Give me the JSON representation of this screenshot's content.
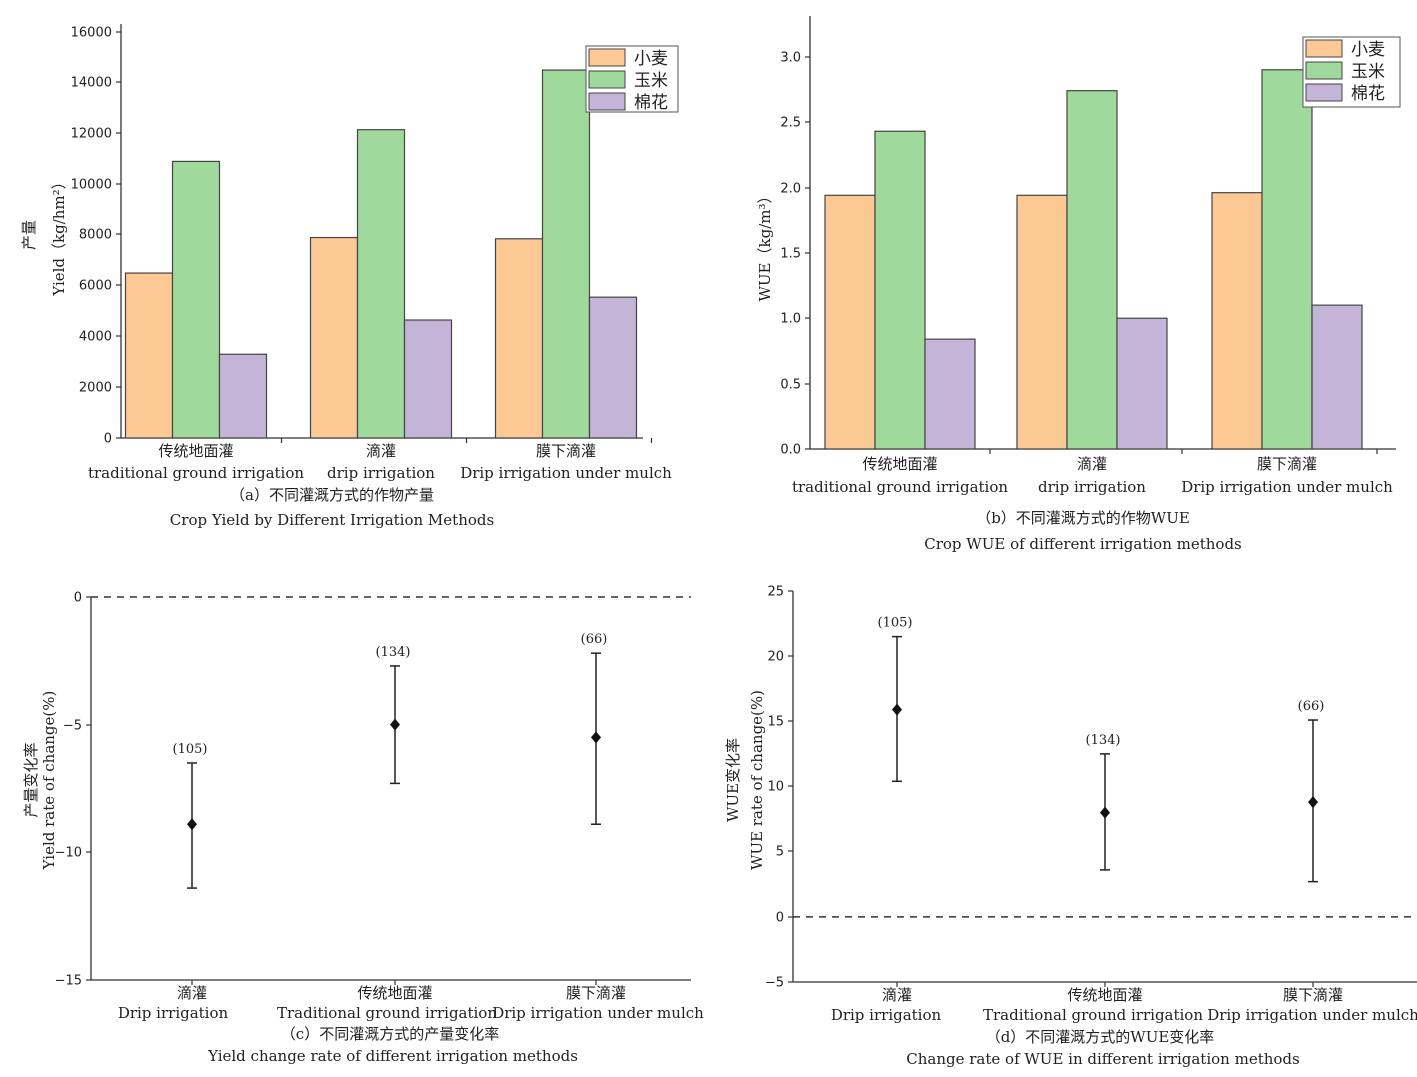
{
  "chart_data": [
    {
      "type": "bar",
      "categories": [
        {
          "zh": "传统地面灌",
          "en": "traditional ground irrigation"
        },
        {
          "zh": "滴灌",
          "en": "drip irrigation"
        },
        {
          "zh": "膜下滴灌",
          "en": "Drip irrigation under mulch"
        }
      ],
      "series": [
        {
          "name": "小麦",
          "color": "#fcc995",
          "values": [
            6500,
            7900,
            7850
          ]
        },
        {
          "name": "玉米",
          "color": "#9fd99c",
          "values": [
            10900,
            12150,
            14500
          ]
        },
        {
          "name": "棉花",
          "color": "#c3b4d8",
          "values": [
            3300,
            4650,
            5550
          ]
        }
      ],
      "ylim": [
        0,
        16000
      ],
      "yticks": [
        "0",
        "2000",
        "4000",
        "6000",
        "8000",
        "10000",
        "12000",
        "14000",
        "16000"
      ],
      "ylabel_zh": "产量",
      "ylabel_en": "Yield（kg/hm²）",
      "caption_zh": "（a）不同灌溉方式的作物产量",
      "caption_en": "Crop Yield by Different Irrigation Methods",
      "legend": "top-right"
    },
    {
      "type": "bar",
      "categories": [
        {
          "zh": "传统地面灌",
          "en": "traditional ground irrigation"
        },
        {
          "zh": "滴灌",
          "en": "drip irrigation"
        },
        {
          "zh": "膜下滴灌",
          "en": "Drip irrigation under mulch"
        }
      ],
      "series": [
        {
          "name": "小麦",
          "color": "#fcc995",
          "values": [
            1.94,
            1.94,
            1.96
          ]
        },
        {
          "name": "玉米",
          "color": "#9fd99c",
          "values": [
            2.43,
            2.74,
            2.9
          ]
        },
        {
          "name": "棉花",
          "color": "#c3b4d8",
          "values": [
            0.84,
            1.0,
            1.1
          ]
        }
      ],
      "ylim": [
        0,
        3.25
      ],
      "yticks": [
        "0.0",
        "0.5",
        "1.0",
        "1.5",
        "2.0",
        "2.5",
        "3.0"
      ],
      "ylabel_en": "WUE（kg/m³）",
      "caption_zh": "（b）不同灌溉方式的作物WUE",
      "caption_en": "Crop WUE of different irrigation methods",
      "legend": "top-right"
    },
    {
      "type": "scatter",
      "categories": [
        {
          "zh": "滴灌",
          "en": "Drip irrigation"
        },
        {
          "zh": "传统地面灌",
          "en": "Traditional ground irrigation"
        },
        {
          "zh": "膜下滴灌",
          "en": "Drip irrigation under mulch"
        }
      ],
      "points": [
        {
          "mean": -8.9,
          "low": -11.4,
          "high": -6.5,
          "n": "(105)"
        },
        {
          "mean": -5.0,
          "low": -7.3,
          "high": -2.7,
          "n": "(134)"
        },
        {
          "mean": -5.5,
          "low": -8.9,
          "high": -2.2,
          "n": "(66)"
        }
      ],
      "ylim": [
        -15,
        0
      ],
      "yticks": [
        "−15",
        "−10",
        "−5",
        "0"
      ],
      "reference_line": 0,
      "ylabel_zh": "产量变化率",
      "ylabel_en": "Yield rate of change(%)",
      "caption_zh": "（c）不同灌溉方式的产量变化率",
      "caption_en": "Yield change rate of different irrigation methods"
    },
    {
      "type": "scatter",
      "categories": [
        {
          "zh": "滴灌",
          "en": "Drip irrigation"
        },
        {
          "zh": "传统地面灌",
          "en": "Traditional ground irrigation"
        },
        {
          "zh": "膜下滴灌",
          "en": "Drip irrigation under mulch"
        }
      ],
      "points": [
        {
          "mean": 15.9,
          "low": 10.4,
          "high": 21.5,
          "n": "(105)"
        },
        {
          "mean": 8.0,
          "low": 3.6,
          "high": 12.5,
          "n": "(134)"
        },
        {
          "mean": 8.8,
          "low": 2.7,
          "high": 15.1,
          "n": "(66)"
        }
      ],
      "ylim": [
        -5,
        25
      ],
      "yticks": [
        "−5",
        "0",
        "5",
        "10",
        "15",
        "20",
        "25"
      ],
      "reference_line": 0,
      "ylabel_zh": "WUE变化率",
      "ylabel_en": "WUE rate of change(%)",
      "caption_zh": "（d）不同灌溉方式的WUE变化率",
      "caption_en": "Change rate of WUE in different irrigation methods"
    }
  ]
}
